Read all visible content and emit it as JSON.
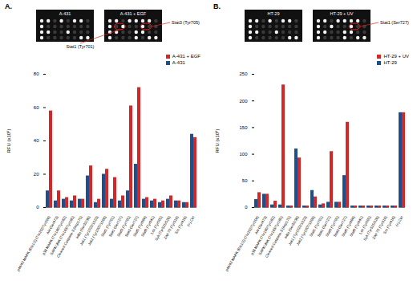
{
  "chart_data": [
    {
      "type": "bar",
      "title": "A.",
      "annotations": [
        "A-431",
        "A-431 + EGF",
        "Stat3 (Tyr705)",
        "Stat1 (Tyr701)"
      ],
      "categories": [
        "p44/42 MAPK (Erk1/2) (Thr202/Tyr204)",
        "Akt (Ser473)",
        "p38 MAPK (Thr180/Tyr182)",
        "SAPK/JNK (Thr183/Tyr185)",
        "Cleaved Caspase-3 (Asp175)",
        "IκBα (Ser32/36)",
        "Jak1 (Tyr1022/1023)",
        "Jak2 (Tyr1007/1008)",
        "Stat1 (Tyr701)",
        "Stat1 (Ser727)",
        "Stat3 (Tyr705)",
        "Stat3 (Ser727)",
        "Stat5 (Tyr694)",
        "Stat6 (Tyr641)",
        "Lck (Tyr505)",
        "Syk (Tyr525/526)",
        "Zap-70 (Tyr319)",
        "Src (Tyr416)",
        "(+) Ctrl"
      ],
      "series": [
        {
          "name": "A-431 + EGF",
          "color": "#d62728",
          "values": [
            58,
            10,
            6,
            7,
            5,
            25,
            5,
            23,
            18,
            7,
            61,
            72,
            6,
            5,
            4,
            7,
            4,
            3,
            42
          ]
        },
        {
          "name": "A-431",
          "color": "#1f4e8c",
          "values": [
            10,
            4,
            5,
            4,
            5,
            19,
            3,
            20,
            5,
            4,
            10,
            26,
            5,
            4,
            3,
            5,
            4,
            3,
            44
          ]
        }
      ],
      "ylabel": "RFU (x10⁶)",
      "ylim": [
        0,
        80
      ],
      "yticks": [
        0,
        20,
        40,
        60,
        80
      ],
      "legend": "top-right"
    },
    {
      "type": "bar",
      "title": "B.",
      "annotations": [
        "HT-29",
        "HT-29 + UV",
        "Stat1 (Ser727)"
      ],
      "categories": [
        "p44/42 MAPK (Erk1/2) (Thr202/Tyr204)",
        "Akt (Ser473)",
        "p38 MAPK (Thr180/Tyr182)",
        "SAPK/JNK (Thr183/Tyr185)",
        "Cleaved Caspase-3 (Asp175)",
        "IκBα (Ser32/36)",
        "Jak1 (Tyr1022/1023)",
        "Jak2 (Tyr1007/1008)",
        "Stat1 (Tyr701)",
        "Stat1 (Ser727)",
        "Stat3 (Tyr705)",
        "Stat3 (Ser727)",
        "Stat5 (Tyr694)",
        "Stat6 (Tyr641)",
        "Lck (Tyr505)",
        "Syk (Tyr525/526)",
        "Zap-70 (Tyr319)",
        "Src (Tyr416)",
        "(+) Ctrl"
      ],
      "series": [
        {
          "name": "HT-29 + UV",
          "color": "#d62728",
          "values": [
            28,
            25,
            12,
            230,
            3,
            93,
            3,
            20,
            7,
            105,
            10,
            160,
            3,
            3,
            3,
            3,
            3,
            3,
            178
          ]
        },
        {
          "name": "HT-29",
          "color": "#1f4e8c",
          "values": [
            15,
            25,
            5,
            5,
            3,
            110,
            3,
            32,
            5,
            10,
            10,
            60,
            3,
            3,
            3,
            3,
            3,
            3,
            178
          ]
        }
      ],
      "ylabel": "RFU (x10⁶)",
      "ylim": [
        0,
        250
      ],
      "yticks": [
        0,
        50,
        100,
        150,
        200,
        250
      ],
      "legend": "top-right"
    }
  ]
}
